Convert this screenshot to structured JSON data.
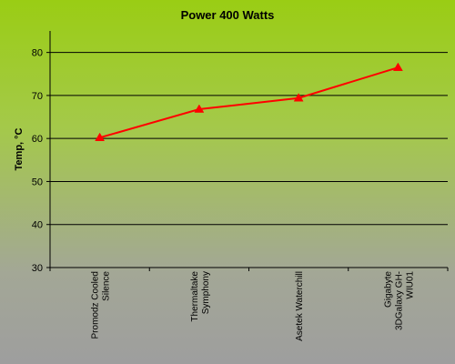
{
  "chart_data": {
    "type": "line",
    "title": "Power 400 Watts",
    "xlabel": "",
    "ylabel": "Temp, °C",
    "categories": [
      [
        "Promodz Cooled",
        "Silence"
      ],
      [
        "Thermaltake",
        "Symphony"
      ],
      [
        "Asetek Waterchill"
      ],
      [
        "Gigabyte",
        "3DGalaxy GH-",
        "WIU01"
      ]
    ],
    "series": [
      {
        "values": [
          60.2,
          66.8,
          69.4,
          76.5
        ]
      }
    ],
    "ylim": [
      30,
      85
    ],
    "yticks": [
      30,
      40,
      50,
      60,
      70,
      80
    ],
    "grid": true,
    "legend": "none",
    "colors": {
      "line": "#ff0000",
      "marker": "#ff0000",
      "grid": "#000000",
      "axis": "#000000"
    }
  }
}
